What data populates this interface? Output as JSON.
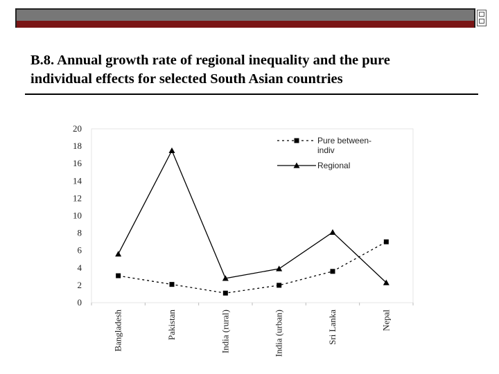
{
  "slide": {
    "title_line1": "B.8. Annual growth rate of regional inequality and the pure",
    "title_line2": "individual effects for selected South Asian countries"
  },
  "colors": {
    "header_bar": "#777777",
    "header_stripe": "#7a1515",
    "series": "#000000"
  },
  "chart_data": {
    "type": "line",
    "categories": [
      "Bangladesh",
      "Pakistan",
      "India (rural)",
      "India (urban)",
      "Sri Lanka",
      "Nepal"
    ],
    "ylim": [
      0,
      20
    ],
    "yticks": [
      "0",
      "2",
      "4",
      "6",
      "8",
      "10",
      "12",
      "14",
      "16",
      "18",
      "20"
    ],
    "xlabel": "",
    "ylabel": "",
    "grid": false,
    "legend_position": "top-right",
    "series": [
      {
        "name": "Pure between-indiv",
        "legend_line1": "Pure between-",
        "legend_line2": "indiv",
        "style": "dashed",
        "marker": "square",
        "values": [
          3.1,
          2.1,
          1.1,
          2.0,
          3.6,
          7.0
        ]
      },
      {
        "name": "Regional",
        "legend_line1": "Regional",
        "style": "solid",
        "marker": "triangle",
        "values": [
          5.6,
          17.5,
          2.8,
          3.9,
          8.1,
          2.3
        ]
      }
    ]
  }
}
